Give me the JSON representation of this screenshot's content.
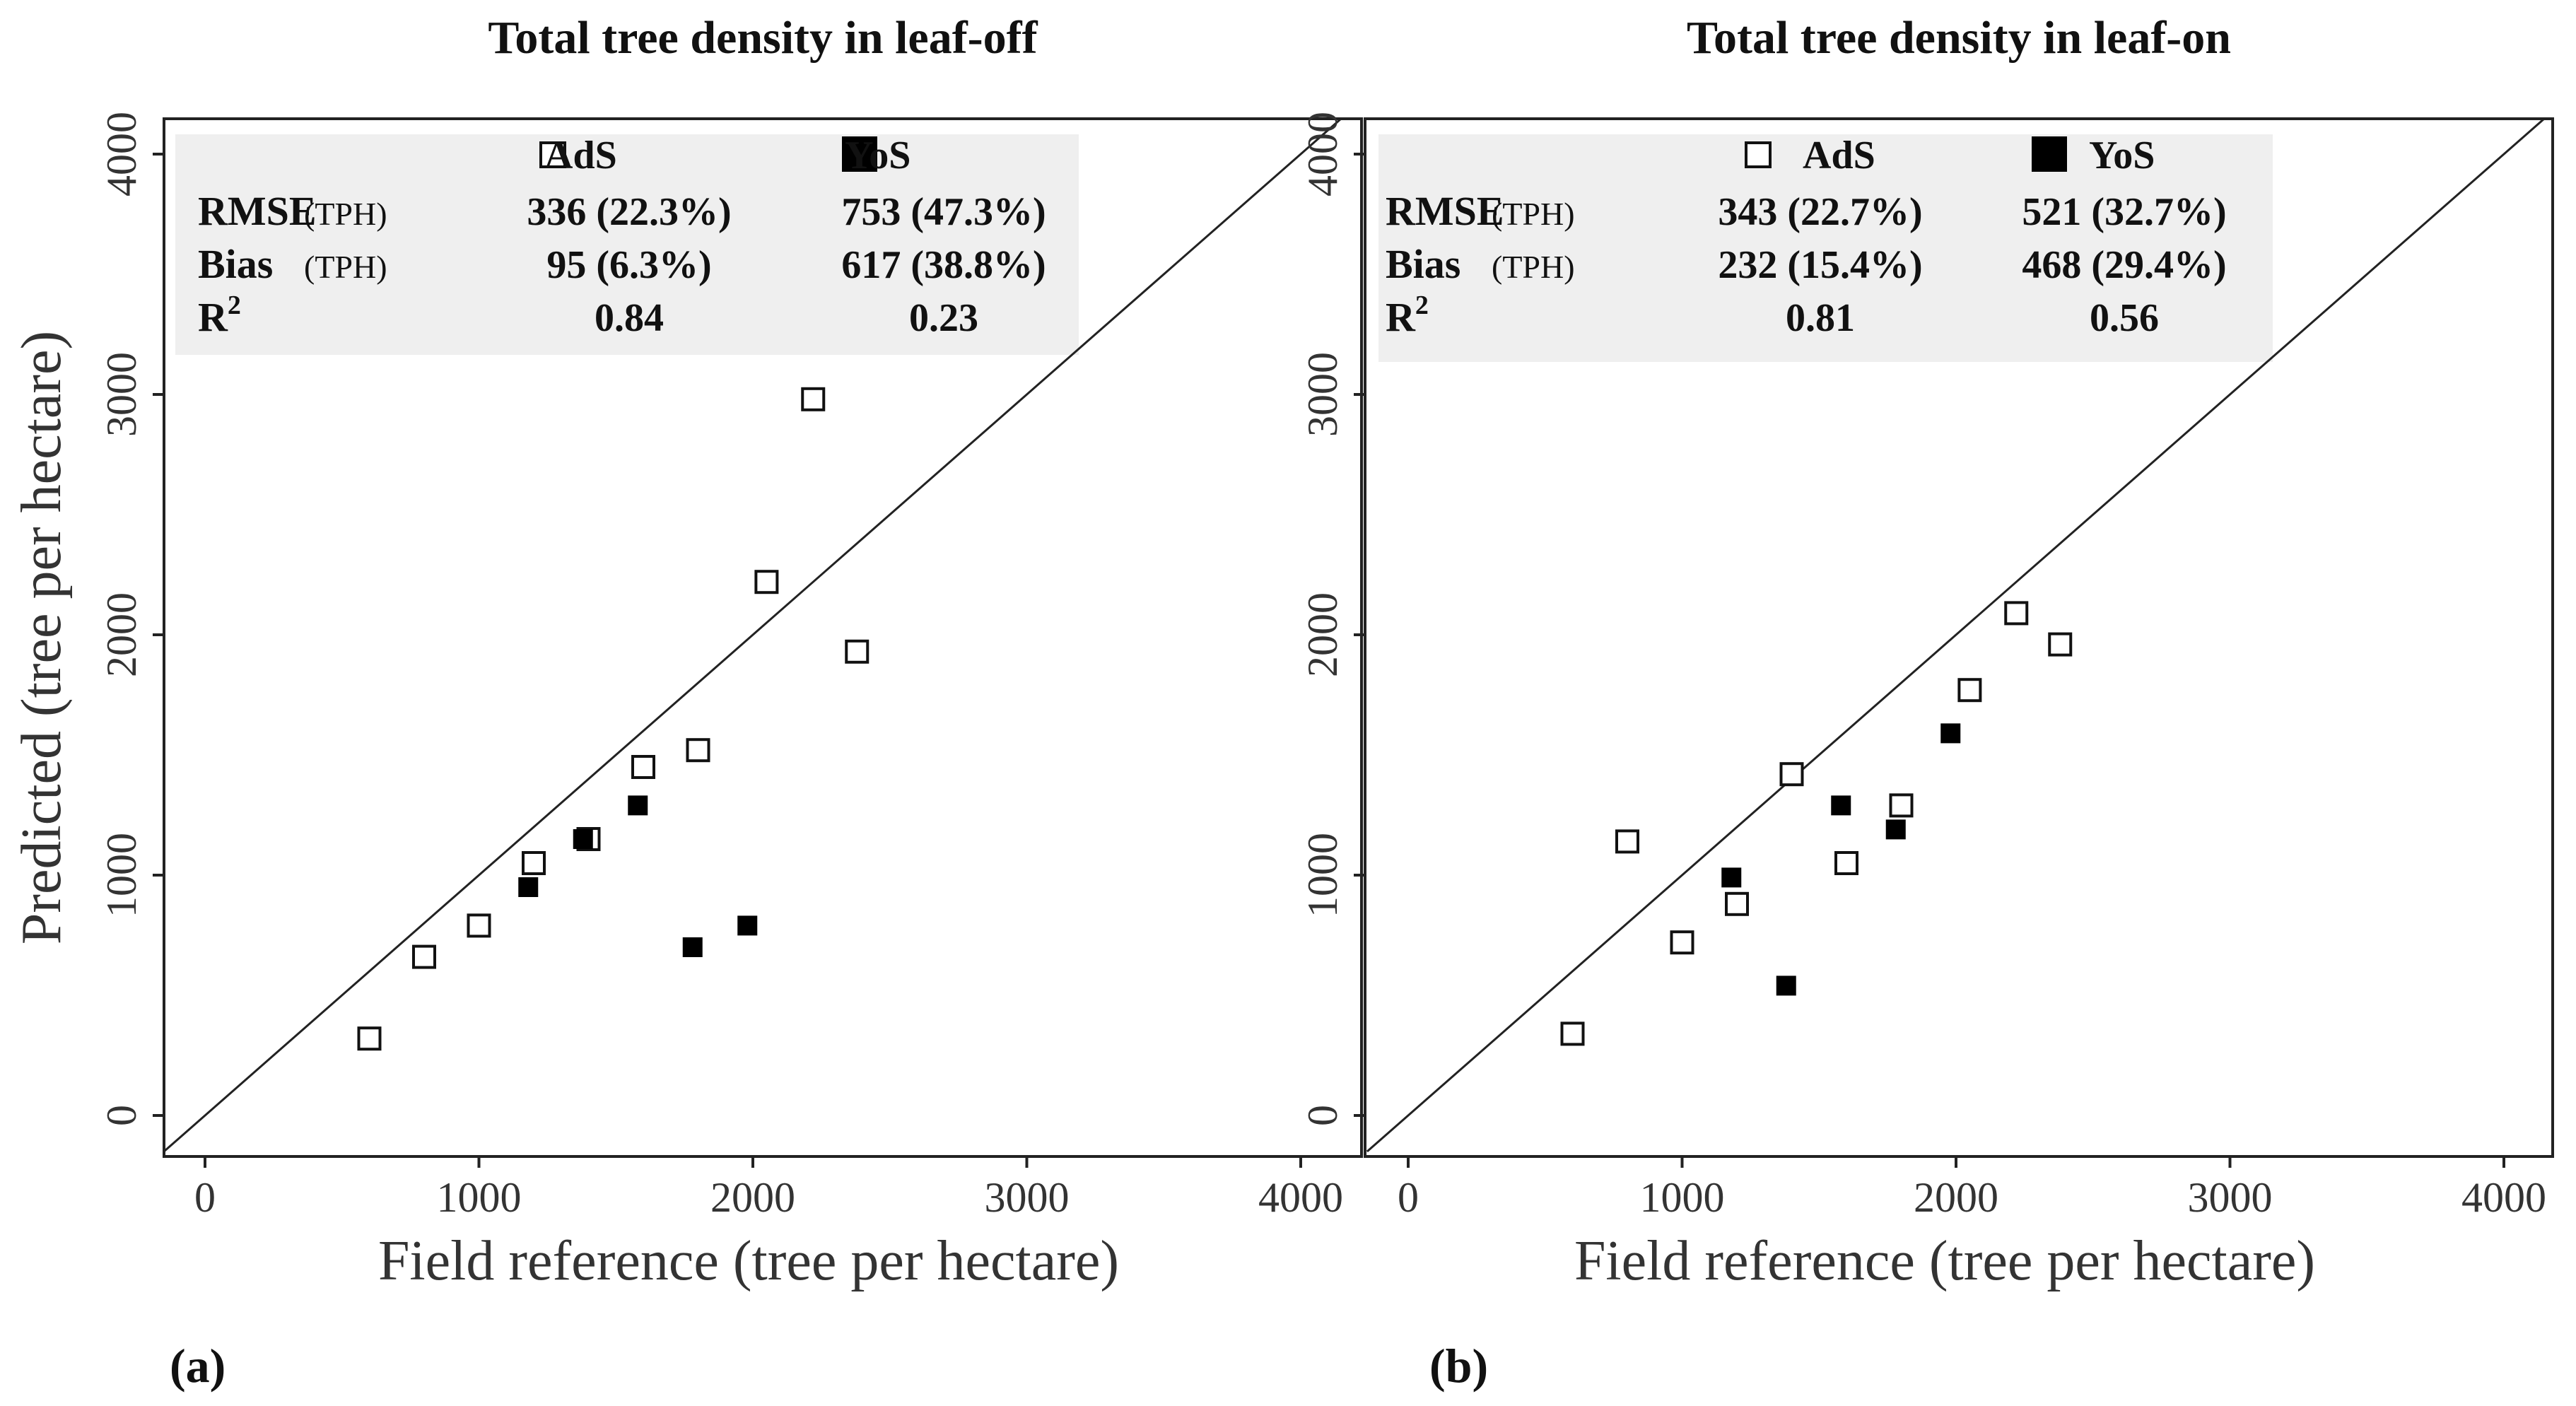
{
  "chart_data": [
    {
      "type": "scatter",
      "panel_label": "(a)",
      "title": "Total tree density in leaf-off",
      "xlabel": "Field reference (tree per hectare)",
      "ylabel": "Predicted (tree per hectare)",
      "xlim": [
        -150,
        4150
      ],
      "ylim": [
        -150,
        4150
      ],
      "xticks": [
        0,
        1000,
        2000,
        3000,
        4000
      ],
      "yticks": [
        0,
        1000,
        2000,
        3000,
        4000
      ],
      "reference_line": "1:1",
      "series": [
        {
          "name": "AdS",
          "marker": "open-square",
          "points": [
            [
              600,
              320
            ],
            [
              800,
              660
            ],
            [
              1000,
              790
            ],
            [
              1200,
              1050
            ],
            [
              1400,
              1150
            ],
            [
              1600,
              1450
            ],
            [
              1800,
              1520
            ],
            [
              2050,
              2220
            ],
            [
              2220,
              2980
            ],
            [
              2380,
              1930
            ]
          ]
        },
        {
          "name": "YoS",
          "marker": "filled-square",
          "points": [
            [
              1180,
              950
            ],
            [
              1380,
              1150
            ],
            [
              1580,
              1290
            ],
            [
              1780,
              700
            ],
            [
              1980,
              790
            ]
          ]
        }
      ],
      "stats": {
        "header": [
          "AdS",
          "YoS"
        ],
        "rows": [
          {
            "label": "RMSE",
            "unit": "(TPH)",
            "ads": "336 (22.3%)",
            "yos": "753 (47.3%)"
          },
          {
            "label": "Bias",
            "unit": "(TPH)",
            "ads": "95 (6.3%)",
            "yos": "617 (38.8%)"
          },
          {
            "label": "R",
            "sup": "2",
            "ads": "0.84",
            "yos": "0.23"
          }
        ]
      }
    },
    {
      "type": "scatter",
      "panel_label": "(b)",
      "title": "Total tree density in leaf-on",
      "xlabel": "Field reference (tree per hectare)",
      "ylabel": "",
      "xlim": [
        -150,
        4150
      ],
      "ylim": [
        -150,
        4150
      ],
      "xticks": [
        0,
        1000,
        2000,
        3000,
        4000
      ],
      "yticks": [
        0,
        1000,
        2000,
        3000,
        4000
      ],
      "reference_line": "1:1",
      "series": [
        {
          "name": "AdS",
          "marker": "open-square",
          "points": [
            [
              600,
              340
            ],
            [
              800,
              1140
            ],
            [
              1000,
              720
            ],
            [
              1200,
              880
            ],
            [
              1400,
              1420
            ],
            [
              1600,
              1050
            ],
            [
              1800,
              1290
            ],
            [
              2050,
              1770
            ],
            [
              2220,
              2090
            ],
            [
              2380,
              1960
            ]
          ]
        },
        {
          "name": "YoS",
          "marker": "filled-square",
          "points": [
            [
              1180,
              990
            ],
            [
              1380,
              540
            ],
            [
              1580,
              1290
            ],
            [
              1780,
              1190
            ],
            [
              1980,
              1590
            ]
          ]
        }
      ],
      "stats": {
        "header": [
          "AdS",
          "YoS"
        ],
        "rows": [
          {
            "label": "RMSE",
            "unit": "(TPH)",
            "ads": "343 (22.7%)",
            "yos": "521 (32.7%)"
          },
          {
            "label": "Bias",
            "unit": "(TPH)",
            "ads": "232 (15.4%)",
            "yos": "468 (29.4%)"
          },
          {
            "label": "R",
            "sup": "2",
            "ads": "0.81",
            "yos": "0.56"
          }
        ]
      }
    }
  ]
}
